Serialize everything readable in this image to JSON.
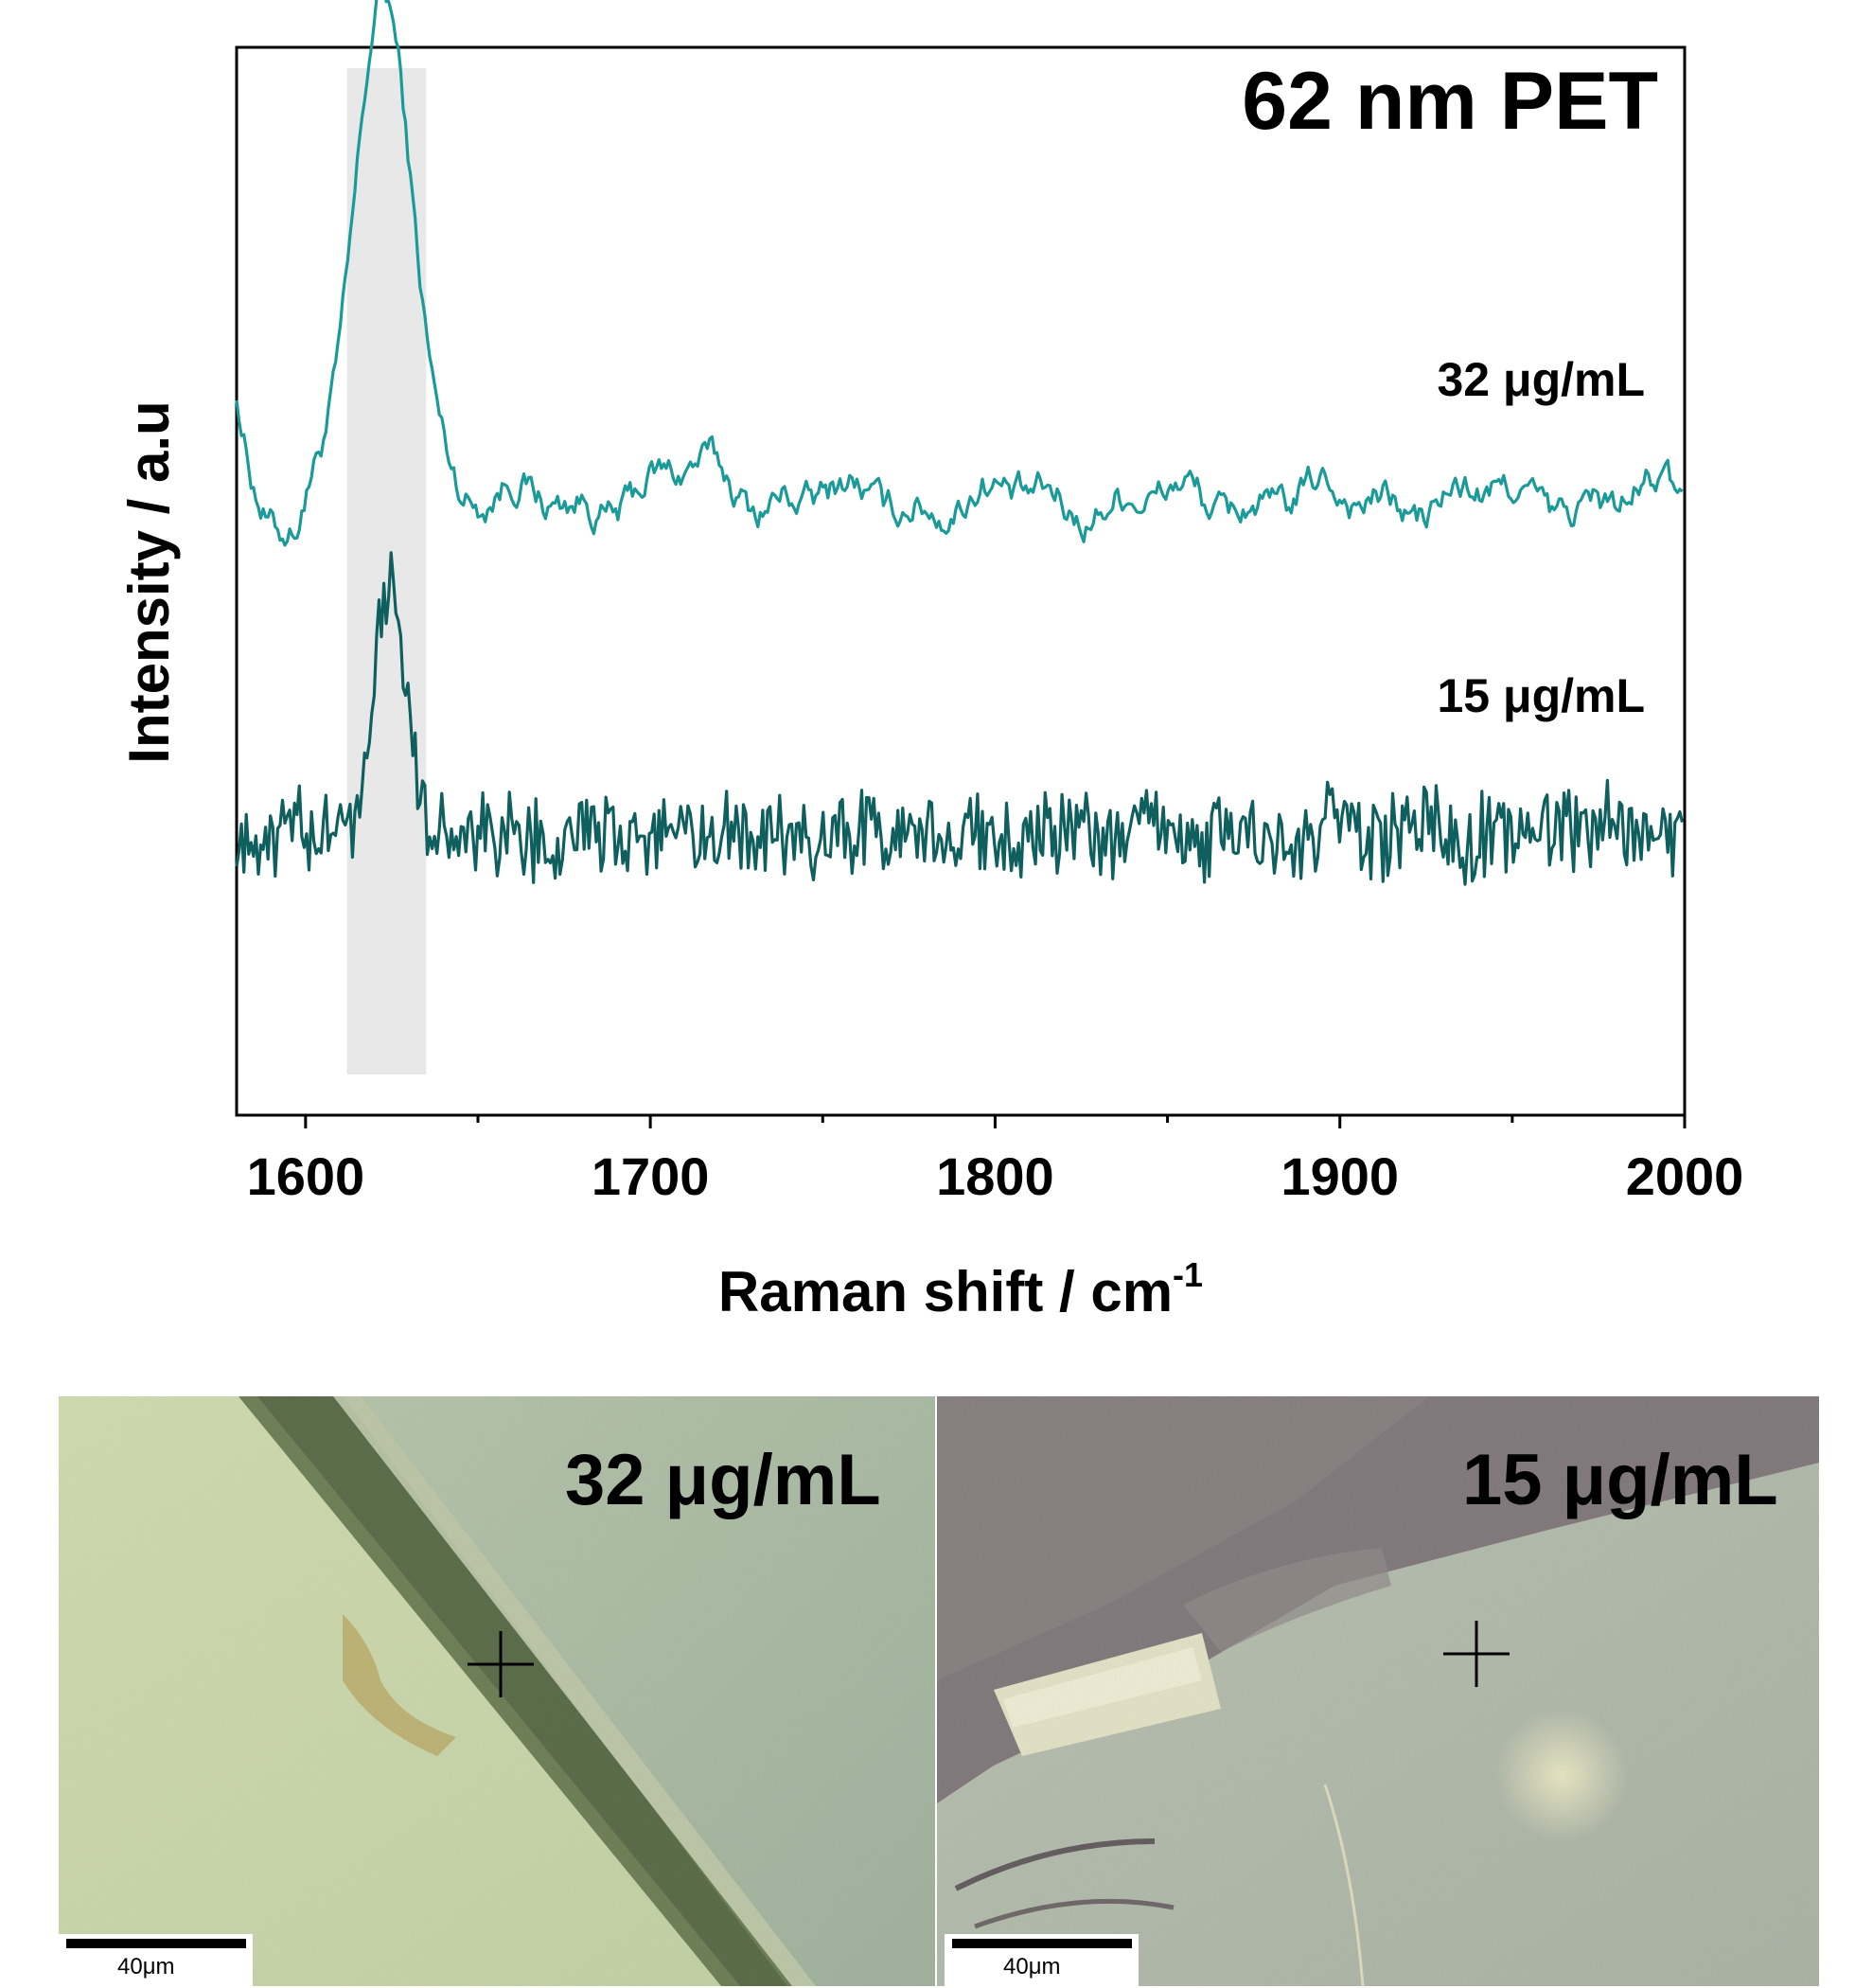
{
  "chart_data": {
    "type": "line",
    "title": "62 nm PET",
    "xlabel": "Raman shift / cm",
    "xlabel_superscript": "-1",
    "ylabel": "Intensity / a.u",
    "xlim": [
      1580,
      2000
    ],
    "xticks": [
      1600,
      1700,
      1800,
      1900,
      2000
    ],
    "y_ticks_shown": false,
    "highlight_band": {
      "x_start": 1612,
      "x_end": 1635,
      "color": "#e8e8e8"
    },
    "series": [
      {
        "name": "32 μg/mL",
        "color": "#1a9a98",
        "offset": 1.0,
        "baseline": 0.0,
        "noise": 0.035,
        "peaks": [
          {
            "center": 1623,
            "height": 1.0,
            "width": 8.5
          },
          {
            "center": 1715,
            "height": 0.06,
            "width": 10
          }
        ],
        "start_value": 0.22
      },
      {
        "name": "15 μg/mL",
        "color": "#0e5f5d",
        "offset": 0.0,
        "baseline": 0.0,
        "noise": 0.09,
        "peaks": [
          {
            "center": 1624,
            "height": 0.7,
            "width": 4.5
          }
        ],
        "start_value": 0.0
      }
    ]
  },
  "micrographs": [
    {
      "label": "32 μg/mL",
      "scale_bar": "40μm"
    },
    {
      "label": "15 μg/mL",
      "scale_bar": "40μm"
    }
  ],
  "colors": {
    "micro_left_bg": "#cfdcb0",
    "micro_left_right": "#a9b9a6",
    "micro_right_bg": "#b6bfae",
    "micro_right_dark": "#7d7475"
  }
}
